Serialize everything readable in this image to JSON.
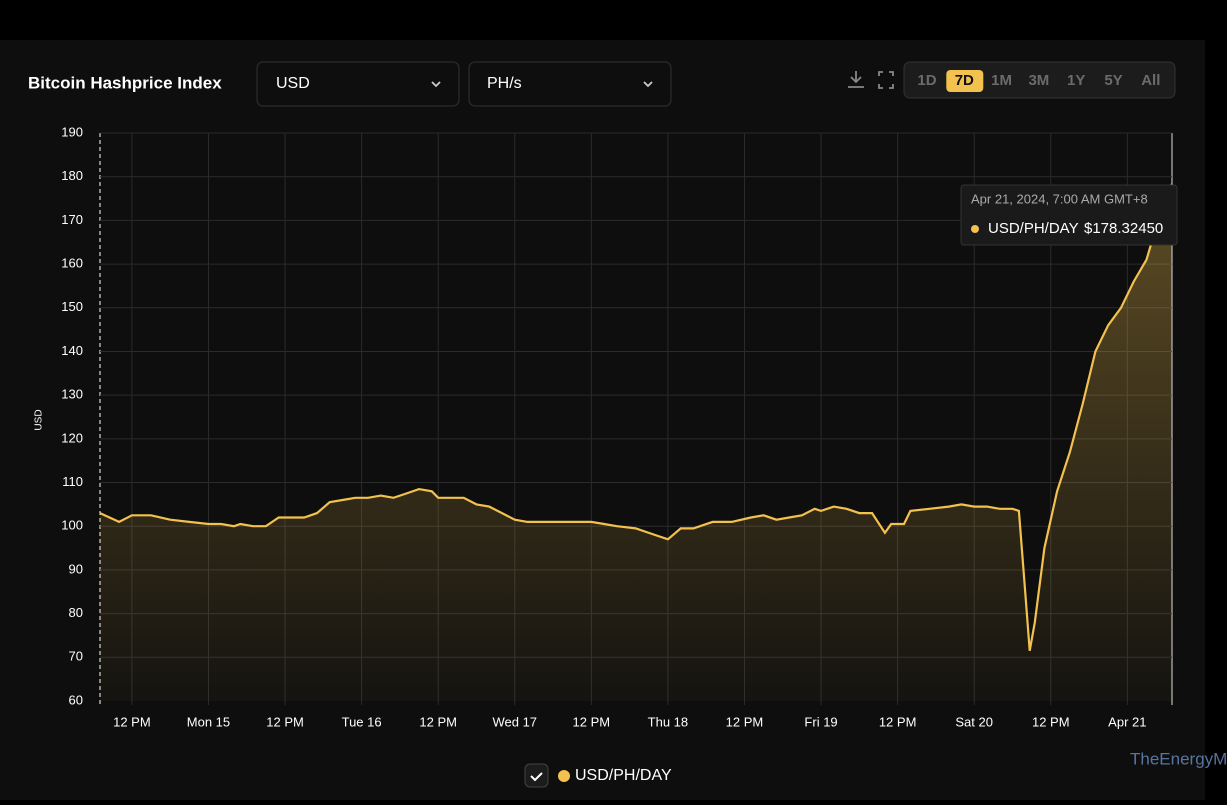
{
  "header": {
    "title": "Bitcoin Hashprice Index",
    "currency": "USD",
    "unit": "PH/s",
    "ranges": [
      "1D",
      "7D",
      "1M",
      "3M",
      "1Y",
      "5Y",
      "All"
    ],
    "active_range": "7D"
  },
  "chart_data": {
    "type": "line",
    "ylabel": "USD",
    "ylim": [
      60,
      190
    ],
    "yticks": [
      60,
      70,
      80,
      90,
      100,
      110,
      120,
      130,
      140,
      150,
      160,
      170,
      180,
      190
    ],
    "xlim": [
      0,
      168
    ],
    "xticks": [
      {
        "value": 5,
        "label": "12 PM"
      },
      {
        "value": 17,
        "label": "Mon 15"
      },
      {
        "value": 29,
        "label": "12 PM"
      },
      {
        "value": 41,
        "label": "Tue 16"
      },
      {
        "value": 53,
        "label": "12 PM"
      },
      {
        "value": 65,
        "label": "Wed 17"
      },
      {
        "value": 77,
        "label": "12 PM"
      },
      {
        "value": 89,
        "label": "Thu 18"
      },
      {
        "value": 101,
        "label": "12 PM"
      },
      {
        "value": 113,
        "label": "Fri 19"
      },
      {
        "value": 125,
        "label": "12 PM"
      },
      {
        "value": 137,
        "label": "Sat 20"
      },
      {
        "value": 149,
        "label": "12 PM"
      },
      {
        "value": 161,
        "label": "Apr 21"
      }
    ],
    "grid": true,
    "series": [
      {
        "name": "USD/PH/DAY",
        "color": "#f2c14e",
        "x": [
          0,
          3,
          5,
          8,
          11,
          14,
          17,
          19,
          21,
          22,
          24,
          26,
          28,
          30,
          32,
          34,
          36,
          38,
          40,
          42,
          44,
          46,
          48,
          50,
          52,
          53,
          57,
          59,
          61,
          63,
          65,
          67,
          69,
          71,
          75,
          77,
          79,
          81,
          84,
          87,
          89,
          91,
          93,
          96,
          99,
          102,
          104,
          106,
          108,
          110,
          112,
          113,
          115,
          117,
          119,
          121,
          123,
          124,
          126,
          127,
          130,
          133,
          135,
          137,
          139,
          141,
          143,
          144,
          145,
          145.7,
          146.5,
          148,
          150,
          152,
          154,
          156,
          158,
          160,
          162,
          164,
          165,
          166.3,
          167,
          168
        ],
        "values": [
          103,
          101,
          102.5,
          102.5,
          101.5,
          101,
          100.5,
          100.5,
          100,
          100.5,
          100,
          100,
          102,
          102,
          102,
          103,
          105.5,
          106,
          106.5,
          106.5,
          107,
          106.5,
          107.5,
          108.5,
          108,
          106.5,
          106.5,
          105,
          104.5,
          103,
          101.5,
          101,
          101,
          101,
          101,
          101,
          100.5,
          100,
          99.5,
          98,
          97,
          99.5,
          99.5,
          101,
          101,
          102,
          102.5,
          101.5,
          102,
          102.5,
          104,
          103.5,
          104.5,
          104,
          103,
          103,
          98.5,
          100.5,
          100.5,
          103.5,
          104,
          104.5,
          105,
          104.5,
          104.5,
          104,
          104,
          103.5,
          85,
          71.5,
          78,
          95,
          108,
          117,
          128,
          140,
          146,
          150,
          156,
          161,
          166,
          170,
          175,
          178.3245
        ]
      }
    ],
    "tooltip": {
      "date": "Apr 21, 2024, 7:00 AM GMT+8",
      "value": 178.3245,
      "value_label": "$178.32450"
    },
    "watermark": "TheEnergyMag"
  }
}
